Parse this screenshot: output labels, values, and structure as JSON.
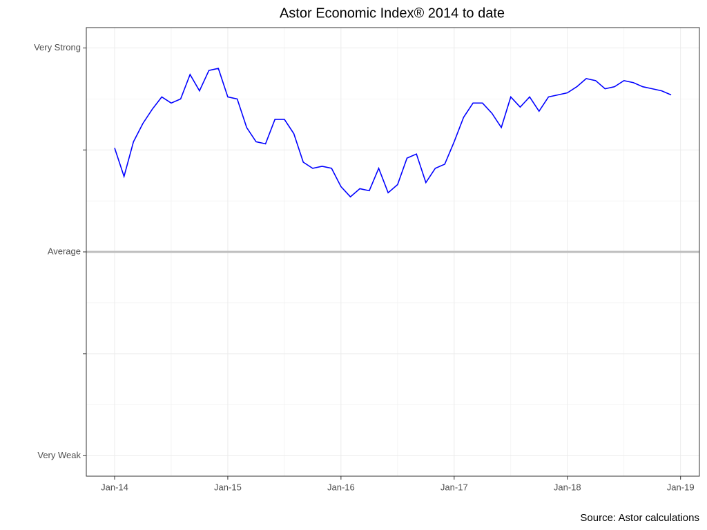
{
  "chart_data": {
    "type": "line",
    "title": "Astor Economic Index® 2014 to date",
    "caption": "Source: Astor calculations",
    "x": [
      "2014-01",
      "2014-02",
      "2014-03",
      "2014-04",
      "2014-05",
      "2014-06",
      "2014-07",
      "2014-08",
      "2014-09",
      "2014-10",
      "2014-11",
      "2014-12",
      "2015-01",
      "2015-02",
      "2015-03",
      "2015-04",
      "2015-05",
      "2015-06",
      "2015-07",
      "2015-08",
      "2015-09",
      "2015-10",
      "2015-11",
      "2015-12",
      "2016-01",
      "2016-02",
      "2016-03",
      "2016-04",
      "2016-05",
      "2016-06",
      "2016-07",
      "2016-08",
      "2016-09",
      "2016-10",
      "2016-11",
      "2016-12",
      "2017-01",
      "2017-02",
      "2017-03",
      "2017-04",
      "2017-05",
      "2017-06",
      "2017-07",
      "2017-08",
      "2017-09",
      "2017-10",
      "2017-11",
      "2017-12",
      "2018-01",
      "2018-02",
      "2018-03",
      "2018-04",
      "2018-05",
      "2018-06",
      "2018-07",
      "2018-08",
      "2018-09",
      "2018-10",
      "2018-11",
      "2018-12"
    ],
    "series": [
      {
        "color": "#0000ff",
        "values": [
          51,
          37,
          54,
          63,
          70,
          76,
          73,
          75,
          87,
          79,
          89,
          90,
          76,
          75,
          61,
          54,
          53,
          65,
          65,
          58,
          44,
          41,
          42,
          41,
          32,
          27,
          31,
          30,
          41,
          29,
          33,
          46,
          48,
          34,
          41,
          43,
          54,
          66,
          73,
          73,
          68,
          61,
          76,
          71,
          76,
          69,
          76,
          77,
          78,
          81,
          85,
          84,
          80,
          81,
          84,
          83,
          81,
          80,
          79,
          77
        ]
      }
    ],
    "reference_line": 0,
    "xlim": [
      "2013-10",
      "2019-03"
    ],
    "xticks": [
      {
        "value": "2014-01",
        "label": "Jan-14"
      },
      {
        "value": "2015-01",
        "label": "Jan-15"
      },
      {
        "value": "2016-01",
        "label": "Jan-16"
      },
      {
        "value": "2017-01",
        "label": "Jan-17"
      },
      {
        "value": "2018-01",
        "label": "Jan-18"
      },
      {
        "value": "2019-01",
        "label": "Jan-19"
      }
    ],
    "ylim": [
      -110,
      110
    ],
    "yticks": [
      {
        "value": -100,
        "label": "Very Weak"
      },
      {
        "value": -50,
        "label": null
      },
      {
        "value": 0,
        "label": "Average"
      },
      {
        "value": 50,
        "label": null
      },
      {
        "value": 100,
        "label": "Very Strong"
      }
    ],
    "grid": true
  }
}
